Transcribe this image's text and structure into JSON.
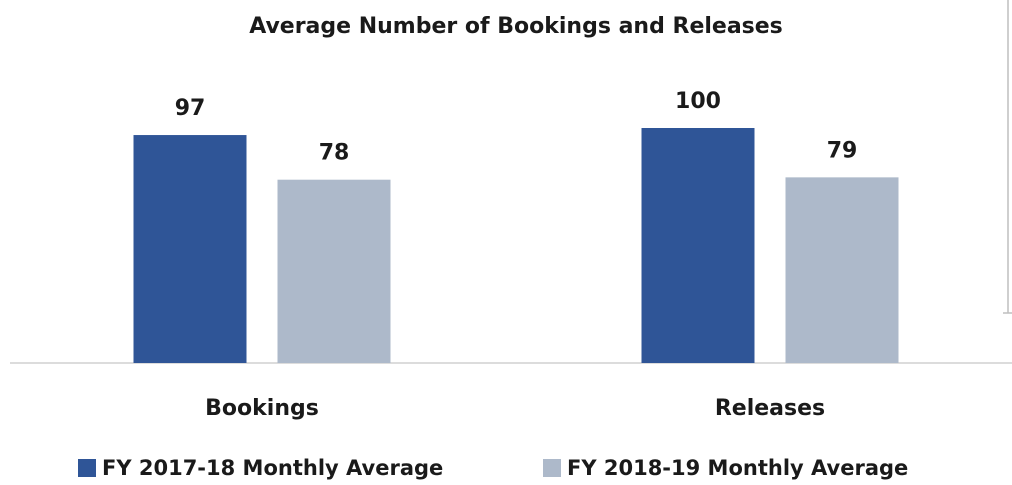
{
  "chart_data": {
    "type": "bar",
    "title": "Average Number of Bookings and Releases",
    "categories": [
      "Bookings",
      "Releases"
    ],
    "series": [
      {
        "name": "FY 2017-18 Monthly Average",
        "color": "#2f5597",
        "values": [
          97,
          100
        ]
      },
      {
        "name": "FY 2018-19 Monthly Average",
        "color": "#adb9ca",
        "values": [
          78,
          79
        ]
      }
    ],
    "ylim": [
      0,
      100
    ],
    "legend": "bottom"
  }
}
